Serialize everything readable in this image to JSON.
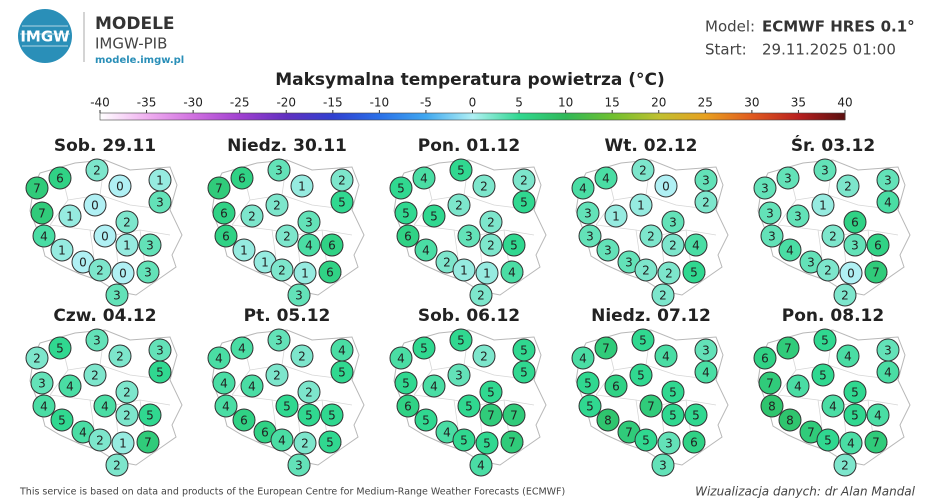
{
  "header": {
    "logo_mark": "IMGW",
    "logo_title": "MODELE",
    "logo_subtitle": "IMGW-PIB",
    "logo_url": "modele.imgw.pl"
  },
  "model": {
    "label": "Model:",
    "value": "ECMWF HRES 0.1°"
  },
  "start": {
    "label": "Start:",
    "value": "29.11.2025 01:00"
  },
  "title": "Maksymalna temperatura powietrza (°C)",
  "colorbar": {
    "ticks": [
      -40,
      -35,
      -30,
      -25,
      -20,
      -15,
      -10,
      -5,
      0,
      5,
      10,
      15,
      20,
      25,
      30,
      35,
      40
    ],
    "colors": [
      "#ffffff",
      "#f0b0f0",
      "#d070e0",
      "#a040d0",
      "#6030c0",
      "#3040d0",
      "#2a70e8",
      "#40a8f0",
      "#b0f0f4",
      "#30d890",
      "#2fb858",
      "#70c030",
      "#c0c030",
      "#e8a020",
      "#e05a20",
      "#b82020",
      "#5a1010"
    ]
  },
  "panels": [
    {
      "day": "Sob. 29.11",
      "values": [
        7,
        6,
        2,
        1,
        0,
        3,
        0,
        7,
        1,
        2,
        4,
        0,
        1,
        1,
        3,
        0,
        2,
        0,
        3,
        3
      ]
    },
    {
      "day": "Niedz. 30.11",
      "values": [
        7,
        6,
        3,
        2,
        1,
        5,
        2,
        6,
        2,
        3,
        6,
        2,
        1,
        4,
        6,
        1,
        2,
        1,
        6,
        3
      ]
    },
    {
      "day": "Pon. 01.12",
      "values": [
        5,
        4,
        5,
        2,
        2,
        5,
        2,
        5,
        5,
        2,
        6,
        3,
        4,
        2,
        5,
        2,
        1,
        1,
        4,
        2
      ]
    },
    {
      "day": "Wt. 02.12",
      "values": [
        4,
        4,
        2,
        3,
        0,
        2,
        1,
        3,
        1,
        3,
        3,
        2,
        3,
        2,
        4,
        3,
        2,
        2,
        5,
        2
      ]
    },
    {
      "day": "Śr. 03.12",
      "values": [
        3,
        3,
        3,
        3,
        2,
        4,
        1,
        3,
        3,
        6,
        3,
        2,
        4,
        3,
        6,
        3,
        2,
        0,
        7,
        2
      ]
    },
    {
      "day": "Czw. 04.12",
      "values": [
        2,
        5,
        3,
        3,
        2,
        5,
        2,
        3,
        4,
        2,
        4,
        4,
        5,
        2,
        5,
        4,
        2,
        1,
        7,
        2
      ]
    },
    {
      "day": "Pt. 05.12",
      "values": [
        4,
        4,
        3,
        4,
        2,
        5,
        2,
        4,
        4,
        2,
        4,
        5,
        6,
        5,
        5,
        6,
        4,
        2,
        5,
        3
      ]
    },
    {
      "day": "Sob. 06.12",
      "values": [
        4,
        5,
        5,
        5,
        2,
        5,
        3,
        5,
        4,
        5,
        6,
        5,
        5,
        7,
        7,
        4,
        5,
        5,
        7,
        4
      ]
    },
    {
      "day": "Niedz. 07.12",
      "values": [
        4,
        7,
        5,
        3,
        4,
        4,
        5,
        5,
        6,
        5,
        5,
        7,
        8,
        5,
        5,
        7,
        5,
        3,
        6,
        3
      ]
    },
    {
      "day": "Pon. 08.12",
      "values": [
        6,
        7,
        5,
        3,
        4,
        4,
        5,
        7,
        4,
        5,
        8,
        4,
        8,
        5,
        4,
        7,
        5,
        4,
        7,
        2
      ]
    }
  ],
  "footer": {
    "source": "This service is based on data and products of the European Centre for Medium-Range Weather Forecasts (ECMWF)",
    "credit": "Wizualizacja danych: dr Alan Mandal"
  }
}
